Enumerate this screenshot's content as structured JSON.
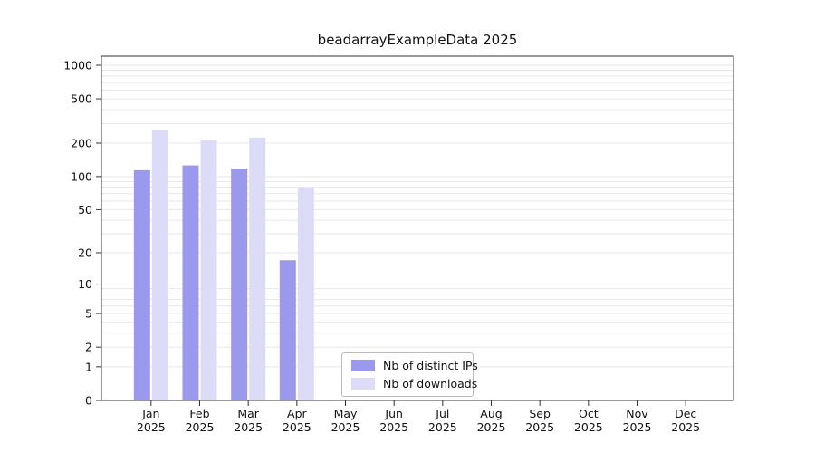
{
  "chart_data": {
    "type": "bar",
    "title": "beadarrayExampleData 2025",
    "categories": [
      "Jan",
      "Feb",
      "Mar",
      "Apr",
      "May",
      "Jun",
      "Jul",
      "Aug",
      "Sep",
      "Oct",
      "Nov",
      "Dec"
    ],
    "category_year": "2025",
    "series": [
      {
        "name": "Nb of distinct IPs",
        "color": "#9b99ee",
        "values": [
          114,
          126,
          118,
          17,
          0,
          0,
          0,
          0,
          0,
          0,
          0,
          0
        ]
      },
      {
        "name": "Nb of downloads",
        "color": "#dcdcf8",
        "values": [
          260,
          212,
          225,
          80,
          0,
          0,
          0,
          0,
          0,
          0,
          0,
          0
        ]
      }
    ],
    "y_ticks": [
      0,
      1,
      2,
      5,
      10,
      20,
      50,
      100,
      200,
      500,
      1000
    ],
    "y_scale": "log1p",
    "ylim": [
      0,
      1000
    ],
    "grid": "horizontal-minor-log",
    "grid_color": "#e7e7e7",
    "axis_color": "#333333",
    "text_color": "#111111",
    "legend_position": "bottom-center"
  }
}
